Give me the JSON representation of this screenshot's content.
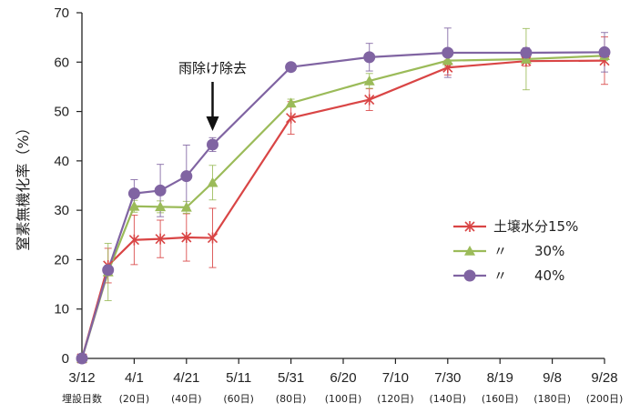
{
  "chart_data": {
    "type": "line",
    "title": "",
    "xlabel": "",
    "ylabel": "窒素無機化率（%）",
    "ylim": [
      0,
      70
    ],
    "yticks": [
      0,
      10,
      20,
      30,
      40,
      50,
      60,
      70
    ],
    "x_ticks": [
      {
        "day": 0,
        "label": "3/12",
        "sub": "埋設日数"
      },
      {
        "day": 20,
        "label": "4/1",
        "sub": "(20日)"
      },
      {
        "day": 40,
        "label": "4/21",
        "sub": "(40日)"
      },
      {
        "day": 60,
        "label": "5/11",
        "sub": "(60日)"
      },
      {
        "day": 80,
        "label": "5/31",
        "sub": "(80日)"
      },
      {
        "day": 100,
        "label": "6/20",
        "sub": "(100日)"
      },
      {
        "day": 120,
        "label": "7/10",
        "sub": "(120日)"
      },
      {
        "day": 140,
        "label": "7/30",
        "sub": "(140日)"
      },
      {
        "day": 160,
        "label": "8/19",
        "sub": "(160日)"
      },
      {
        "day": 180,
        "label": "9/8",
        "sub": "(180日)"
      },
      {
        "day": 200,
        "label": "9/28",
        "sub": "(200日)"
      }
    ],
    "series": [
      {
        "name": "土壌水分15%",
        "legend_label": "土壌水分15%",
        "color": "#d94545",
        "marker": "asterisk",
        "points": [
          {
            "day": 0,
            "y": 0,
            "err": 0
          },
          {
            "day": 10,
            "y": 18.8,
            "err": 3.5
          },
          {
            "day": 20,
            "y": 24.0,
            "err": 5.0
          },
          {
            "day": 30,
            "y": 24.2,
            "err": 3.8
          },
          {
            "day": 40,
            "y": 24.5,
            "err": 4.8
          },
          {
            "day": 50,
            "y": 24.4,
            "err": 6.0
          },
          {
            "day": 80,
            "y": 48.7,
            "err": 3.3
          },
          {
            "day": 110,
            "y": 52.4,
            "err": 2.2
          },
          {
            "day": 140,
            "y": 58.9,
            "err": 1.5
          },
          {
            "day": 170,
            "y": 60.2,
            "err": 1.0
          },
          {
            "day": 200,
            "y": 60.3,
            "err": 4.8
          }
        ]
      },
      {
        "name": "〃 30%",
        "legend_label": "〃　　30%",
        "color": "#9bbb59",
        "marker": "triangle",
        "points": [
          {
            "day": 0,
            "y": 0,
            "err": 0
          },
          {
            "day": 10,
            "y": 17.5,
            "err": 5.8
          },
          {
            "day": 20,
            "y": 30.8,
            "err": 1.2
          },
          {
            "day": 30,
            "y": 30.7,
            "err": 1.2
          },
          {
            "day": 40,
            "y": 30.6,
            "err": 1.2
          },
          {
            "day": 50,
            "y": 35.6,
            "err": 3.5
          },
          {
            "day": 80,
            "y": 51.7,
            "err": 0.8
          },
          {
            "day": 110,
            "y": 56.2,
            "err": 1.5
          },
          {
            "day": 140,
            "y": 60.3,
            "err": 1.2
          },
          {
            "day": 170,
            "y": 60.6,
            "err": 6.2
          },
          {
            "day": 200,
            "y": 61.3,
            "err": 1.0
          }
        ]
      },
      {
        "name": "〃 40%",
        "legend_label": "〃　　40%",
        "color": "#8064a2",
        "marker": "circle",
        "points": [
          {
            "day": 0,
            "y": 0,
            "err": 0
          },
          {
            "day": 10,
            "y": 17.9,
            "err": 1.0
          },
          {
            "day": 20,
            "y": 33.4,
            "err": 2.8
          },
          {
            "day": 30,
            "y": 34.0,
            "err": 5.3
          },
          {
            "day": 40,
            "y": 36.9,
            "err": 6.3
          },
          {
            "day": 50,
            "y": 43.3,
            "err": 1.4
          },
          {
            "day": 80,
            "y": 59.0,
            "err": 0.4
          },
          {
            "day": 110,
            "y": 61.0,
            "err": 2.8
          },
          {
            "day": 140,
            "y": 61.9,
            "err": 5.0
          },
          {
            "day": 170,
            "y": 61.9,
            "err": 1.0
          },
          {
            "day": 200,
            "y": 62.0,
            "err": 4.0
          }
        ]
      }
    ],
    "annotations": [
      {
        "text": "雨除け除去",
        "arrow_day": 50
      }
    ],
    "legend_position": "right-center",
    "grid": false
  }
}
